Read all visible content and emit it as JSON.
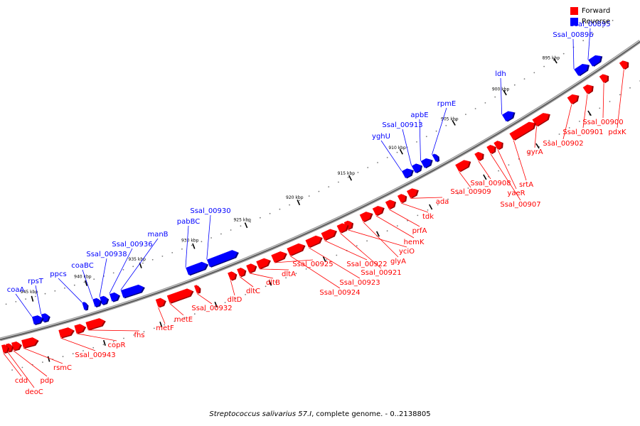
{
  "legend": {
    "forward": {
      "label": "Forward",
      "color": "#ff0000"
    },
    "reverse": {
      "label": "Reverse",
      "color": "#0000ff"
    }
  },
  "caption": {
    "organism": "Streptococcus salivarius 57.I",
    "rest": ", complete genome. - 0..2138805"
  },
  "ticks": [
    "895 kbp",
    "900 kbp",
    "905 kbp",
    "910 kbp",
    "915 kbp",
    "920 kbp",
    "925 kbp",
    "930 kbp",
    "935 kbp",
    "940 kbp",
    "945 kbp"
  ],
  "reverse_genes": [
    "Ssal_00895",
    "Ssal_00896",
    "ldh",
    "rpmE",
    "apbE",
    "Ssal_00913",
    "yghU",
    "Ssal_00930",
    "pabBC",
    "manB",
    "Ssal_00936",
    "Ssal_00938",
    "coaBC",
    "ppcs",
    "rpsT",
    "coaA"
  ],
  "forward_genes": [
    "Ssal_00900",
    "pdxK",
    "Ssal_00901",
    "Ssal_00902",
    "gyrA",
    "srtA",
    "yaeR",
    "Ssal_00907",
    "Ssal_00908",
    "Ssal_00909",
    "ada",
    "tdk",
    "prfA",
    "hemK",
    "glyA",
    "yciO",
    "Ssal_00921",
    "Ssal_00922",
    "Ssal_00923",
    "Ssal_00924",
    "Ssal_00925",
    "dltA",
    "dltB",
    "dltC",
    "dltD",
    "Ssal_00932",
    "metE",
    "metF",
    "fhs",
    "copR",
    "Ssal_00943",
    "rsmC",
    "pdp",
    "deoC",
    "cdd"
  ]
}
